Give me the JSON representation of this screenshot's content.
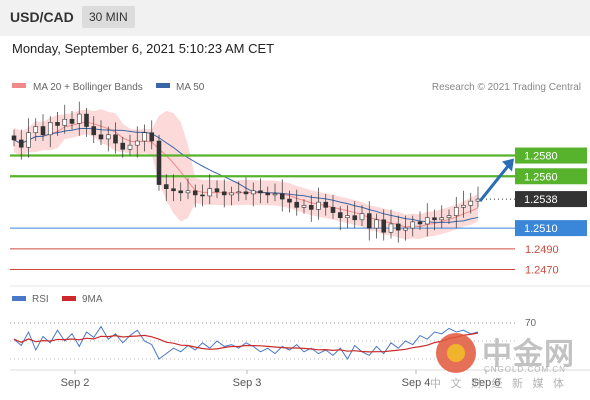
{
  "header": {
    "symbol": "USD/CAD",
    "timeframe": "30 MIN",
    "datetime": "Monday, September 6, 2021 5:10:23 AM CET"
  },
  "legend": {
    "ma20_label": "MA 20 + Bollinger Bands",
    "ma50_label": "MA 50",
    "credit": "Research © 2021 Trading Central",
    "colors": {
      "ma20": "#f08a8a",
      "ma50": "#3a66a8",
      "bands": "#fbd3d3"
    }
  },
  "chart_data": {
    "type": "candlestick",
    "x_labels": [
      "Sep 2",
      "Sep 3",
      "Sep 4",
      "Sep 6"
    ],
    "current_price": "1.2538",
    "levels": [
      {
        "value": "1.2580",
        "kind": "resistance",
        "color": "#58b32c"
      },
      {
        "value": "1.2560",
        "kind": "resistance",
        "color": "#58b32c"
      },
      {
        "value": "1.2510",
        "kind": "pivot",
        "color": "#3a86d8"
      },
      {
        "value": "1.2490",
        "kind": "support",
        "color": "#d04a3e"
      },
      {
        "value": "1.2470",
        "kind": "support",
        "color": "#d04a3e"
      }
    ],
    "forecast": "up",
    "close_path": [
      1.2595,
      1.2588,
      1.2602,
      1.2608,
      1.26,
      1.2612,
      1.2609,
      1.2615,
      1.2611,
      1.262,
      1.2608,
      1.26,
      1.2596,
      1.26,
      1.2592,
      1.2586,
      1.259,
      1.2594,
      1.2602,
      1.2594,
      1.2552,
      1.2548,
      1.2546,
      1.2544,
      1.2546,
      1.2542,
      1.2541,
      1.2548,
      1.2545,
      1.2542,
      1.2544,
      1.2545,
      1.2543,
      1.2546,
      1.2544,
      1.2542,
      1.2543,
      1.2538,
      1.2535,
      1.253,
      1.2532,
      1.2528,
      1.2535,
      1.253,
      1.2525,
      1.252,
      1.2522,
      1.2518,
      1.2524,
      1.251,
      1.2518,
      1.2506,
      1.2514,
      1.2508,
      1.251,
      1.2516,
      1.2514,
      1.252,
      1.2518,
      1.252,
      1.2522,
      1.253,
      1.2532,
      1.2536,
      1.2538
    ],
    "rsi": {
      "label": "RSI",
      "ma_label": "9MA",
      "level_label": "70",
      "colors": {
        "rsi": "#4a78c8",
        "ma": "#cc2a2a"
      },
      "values": [
        52,
        45,
        60,
        40,
        55,
        48,
        62,
        50,
        58,
        44,
        60,
        54,
        66,
        52,
        58,
        48,
        56,
        62,
        50,
        46,
        30,
        36,
        42,
        38,
        45,
        40,
        48,
        42,
        50,
        44,
        46,
        42,
        48,
        44,
        38,
        42,
        36,
        44,
        40,
        46,
        38,
        42,
        36,
        40,
        34,
        42,
        30,
        45,
        38,
        34,
        44,
        36,
        48,
        42,
        50,
        46,
        56,
        52,
        60,
        58,
        64,
        60,
        62,
        58,
        60
      ]
    }
  },
  "watermark": {
    "brand_cn": "中金网",
    "site": "CNGOLD.COM.CN",
    "tagline": "中 文 财 经 新 媒 体"
  }
}
